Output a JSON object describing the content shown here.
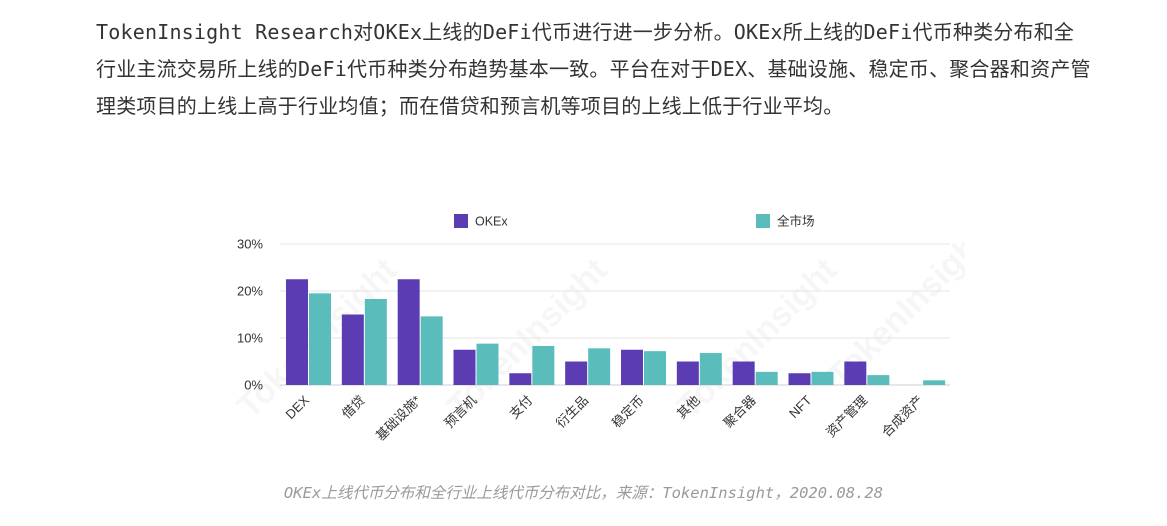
{
  "article": {
    "paragraph": "TokenInsight Research对OKEx上线的DeFi代币进行进一步分析。OKEx所上线的DeFi代币种类分布和全行业主流交易所上线的DeFi代币种类分布趋势基本一致。平台在对于DEX、基础设施、稳定币、聚合器和资产管理类项目的上线上高于行业均值；而在借贷和预言机等项目的上线上低于行业平均。",
    "caption": "OKEx上线代币分布和全行业上线代币分布对比，来源：TokenInsight，2020.08.28"
  },
  "chart_data": {
    "type": "bar",
    "title": "",
    "xlabel": "",
    "ylabel": "",
    "categories": [
      "DEX",
      "借贷",
      "基础设施*",
      "预言机",
      "支付",
      "衍生品",
      "稳定币",
      "其他",
      "聚合器",
      "NFT",
      "资产管理",
      "合成资产"
    ],
    "series": [
      {
        "name": "OKEx",
        "color": "#5b3cb3",
        "values": [
          22.5,
          15.0,
          22.5,
          7.5,
          2.5,
          5.0,
          7.5,
          5.0,
          5.0,
          2.5,
          5.0,
          0
        ]
      },
      {
        "name": "全市场",
        "color": "#5bbcbc",
        "values": [
          19.5,
          18.3,
          14.6,
          8.8,
          8.3,
          7.8,
          7.2,
          6.8,
          2.8,
          2.8,
          2.1,
          1.0
        ]
      }
    ],
    "ylim": [
      0,
      30
    ],
    "yticks": [
      0,
      10,
      20,
      30
    ],
    "ytick_labels": [
      "0%",
      "10%",
      "20%",
      "30%"
    ],
    "grid": true,
    "legend_position": "top",
    "watermark": "TokenInsight"
  }
}
